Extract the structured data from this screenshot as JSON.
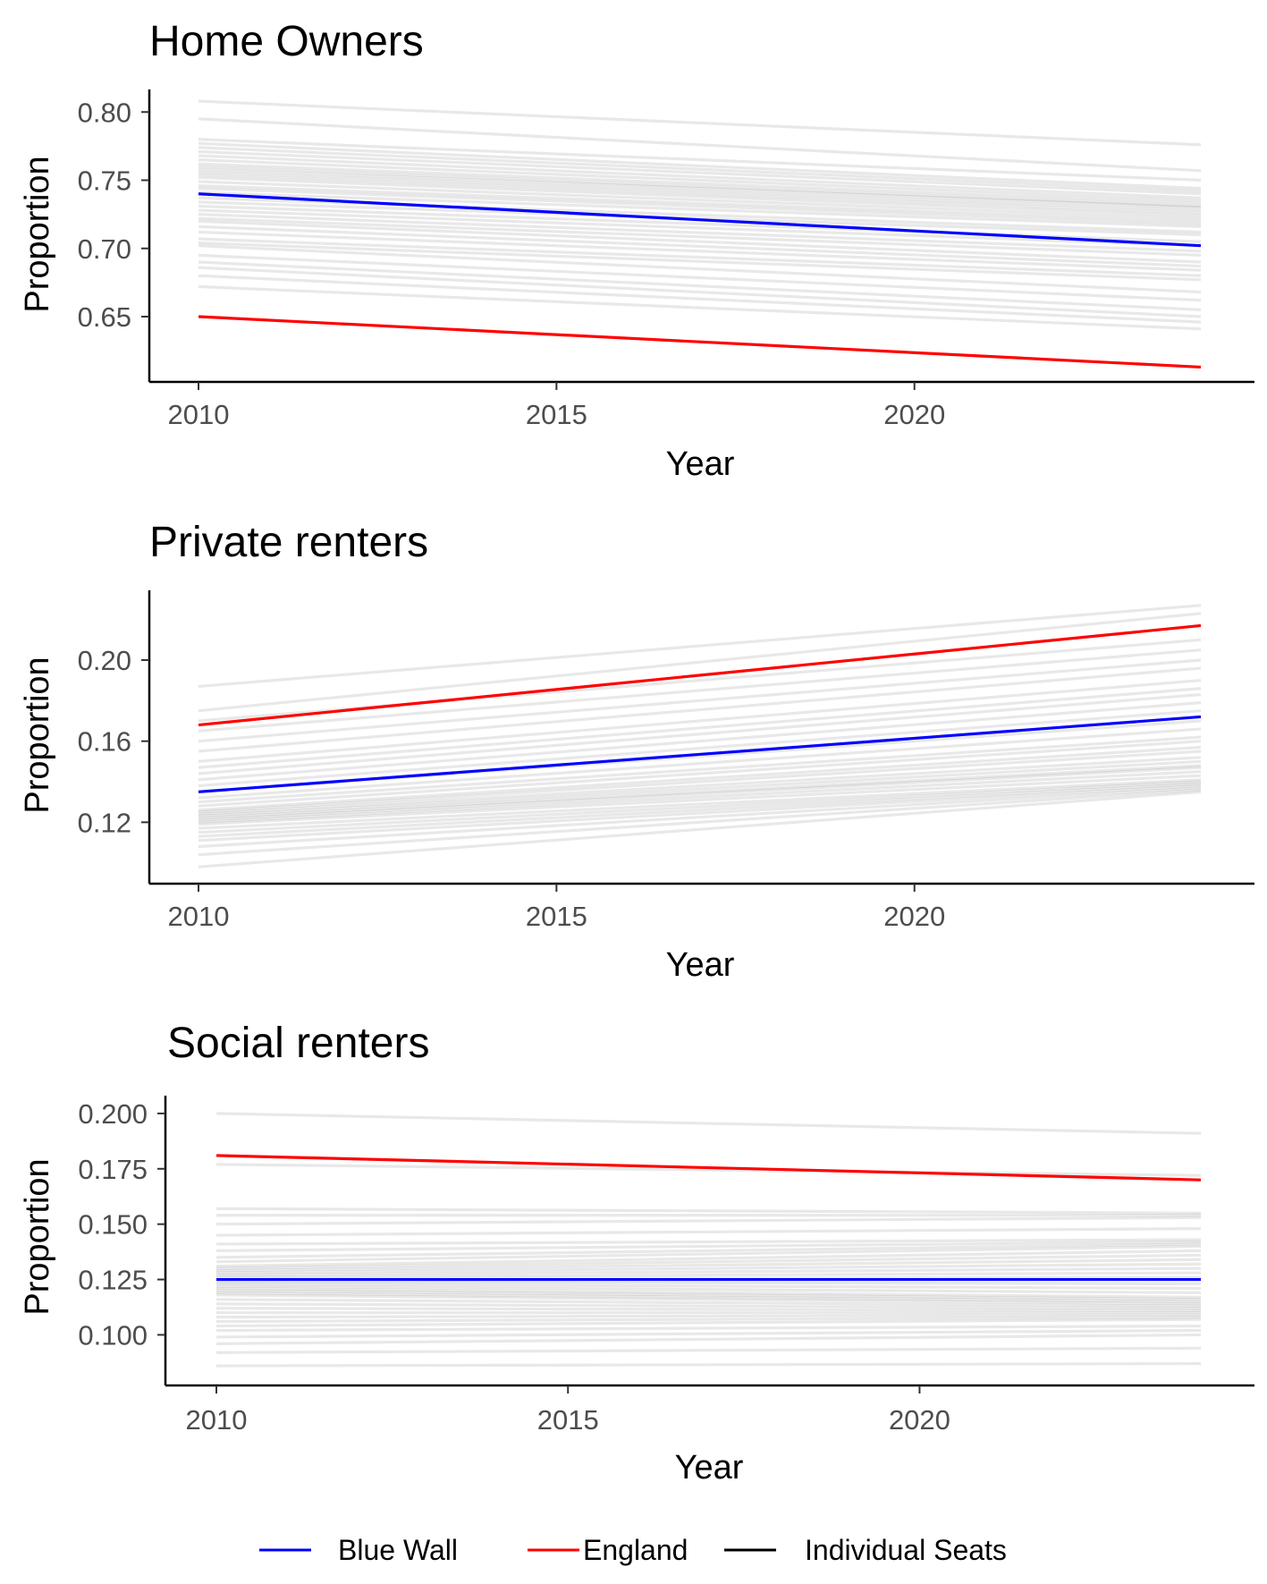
{
  "colors": {
    "blue_wall": "#0000ff",
    "england": "#ff0000",
    "individual_seats": "#000000",
    "individual_seats_alpha": 0.09
  },
  "legend": [
    {
      "label": "Blue Wall",
      "color": "#0000ff"
    },
    {
      "label": "England",
      "color": "#ff0000"
    },
    {
      "label": "Individual Seats",
      "color": "#000000"
    }
  ],
  "chart_data": [
    {
      "type": "line",
      "title": "Home Owners",
      "xlabel": "Year",
      "ylabel": "Proportion",
      "xlim": [
        2010,
        2024
      ],
      "ylim": [
        0.61,
        0.81
      ],
      "x_ticks": [
        "2010",
        "2015",
        "2020"
      ],
      "y_ticks": [
        "0.80",
        "0.75",
        "0.70",
        "0.65"
      ],
      "grid": false,
      "series": [
        {
          "name": "Blue Wall",
          "x": [
            2010,
            2024
          ],
          "values": [
            0.74,
            0.702
          ]
        },
        {
          "name": "England",
          "x": [
            2010,
            2024
          ],
          "values": [
            0.65,
            0.613
          ]
        }
      ],
      "seats": [
        [
          0.808,
          0.776
        ],
        [
          0.795,
          0.757
        ],
        [
          0.78,
          0.75
        ],
        [
          0.777,
          0.744
        ],
        [
          0.774,
          0.742
        ],
        [
          0.771,
          0.74
        ],
        [
          0.768,
          0.737
        ],
        [
          0.765,
          0.735
        ],
        [
          0.762,
          0.733
        ],
        [
          0.76,
          0.731
        ],
        [
          0.758,
          0.73
        ],
        [
          0.756,
          0.728
        ],
        [
          0.754,
          0.726
        ],
        [
          0.752,
          0.724
        ],
        [
          0.749,
          0.722
        ],
        [
          0.746,
          0.72
        ],
        [
          0.744,
          0.718
        ],
        [
          0.741,
          0.716
        ],
        [
          0.737,
          0.712
        ],
        [
          0.734,
          0.71
        ],
        [
          0.731,
          0.705
        ],
        [
          0.728,
          0.702
        ],
        [
          0.725,
          0.698
        ],
        [
          0.722,
          0.695
        ],
        [
          0.72,
          0.69
        ],
        [
          0.716,
          0.687
        ],
        [
          0.712,
          0.684
        ],
        [
          0.707,
          0.68
        ],
        [
          0.704,
          0.677
        ],
        [
          0.702,
          0.668
        ],
        [
          0.695,
          0.662
        ],
        [
          0.69,
          0.655
        ],
        [
          0.686,
          0.65
        ],
        [
          0.68,
          0.646
        ],
        [
          0.672,
          0.641
        ]
      ]
    },
    {
      "type": "line",
      "title": "Private renters",
      "xlabel": "Year",
      "ylabel": "Proportion",
      "xlim": [
        2010,
        2024
      ],
      "ylim": [
        0.095,
        0.23
      ],
      "x_ticks": [
        "2010",
        "2015",
        "2020"
      ],
      "y_ticks": [
        "0.20",
        "0.16",
        "0.12"
      ],
      "grid": false,
      "series": [
        {
          "name": "Blue Wall",
          "x": [
            2010,
            2024
          ],
          "values": [
            0.135,
            0.172
          ]
        },
        {
          "name": "England",
          "x": [
            2010,
            2024
          ],
          "values": [
            0.168,
            0.217
          ]
        }
      ],
      "seats": [
        [
          0.187,
          0.227
        ],
        [
          0.175,
          0.223
        ],
        [
          0.17,
          0.21
        ],
        [
          0.165,
          0.205
        ],
        [
          0.16,
          0.2
        ],
        [
          0.155,
          0.196
        ],
        [
          0.15,
          0.19
        ],
        [
          0.147,
          0.186
        ],
        [
          0.144,
          0.183
        ],
        [
          0.141,
          0.179
        ],
        [
          0.138,
          0.175
        ],
        [
          0.135,
          0.17
        ],
        [
          0.132,
          0.166
        ],
        [
          0.13,
          0.162
        ],
        [
          0.128,
          0.16
        ],
        [
          0.126,
          0.157
        ],
        [
          0.125,
          0.155
        ],
        [
          0.124,
          0.152
        ],
        [
          0.123,
          0.15
        ],
        [
          0.122,
          0.148
        ],
        [
          0.121,
          0.147
        ],
        [
          0.12,
          0.145
        ],
        [
          0.119,
          0.143
        ],
        [
          0.117,
          0.141
        ],
        [
          0.115,
          0.14
        ],
        [
          0.113,
          0.139
        ],
        [
          0.111,
          0.138
        ],
        [
          0.108,
          0.137
        ],
        [
          0.104,
          0.136
        ],
        [
          0.098,
          0.135
        ]
      ]
    },
    {
      "type": "line",
      "title": "Social renters",
      "xlabel": "Year",
      "ylabel": "Proportion",
      "xlim": [
        2010,
        2024
      ],
      "ylim": [
        0.082,
        0.204
      ],
      "x_ticks": [
        "2010",
        "2015",
        "2020"
      ],
      "y_ticks": [
        "0.200",
        "0.175",
        "0.150",
        "0.125",
        "0.100"
      ],
      "grid": false,
      "series": [
        {
          "name": "Blue Wall",
          "x": [
            2010,
            2024
          ],
          "values": [
            0.125,
            0.125
          ]
        },
        {
          "name": "England",
          "x": [
            2010,
            2024
          ],
          "values": [
            0.181,
            0.17
          ]
        }
      ],
      "seats": [
        [
          0.2,
          0.191
        ],
        [
          0.177,
          0.172
        ],
        [
          0.157,
          0.155
        ],
        [
          0.154,
          0.154
        ],
        [
          0.15,
          0.153
        ],
        [
          0.145,
          0.148
        ],
        [
          0.141,
          0.143
        ],
        [
          0.138,
          0.142
        ],
        [
          0.135,
          0.141
        ],
        [
          0.133,
          0.14
        ],
        [
          0.131,
          0.138
        ],
        [
          0.13,
          0.136
        ],
        [
          0.129,
          0.134
        ],
        [
          0.128,
          0.132
        ],
        [
          0.127,
          0.13
        ],
        [
          0.126,
          0.128
        ],
        [
          0.125,
          0.126
        ],
        [
          0.124,
          0.123
        ],
        [
          0.123,
          0.121
        ],
        [
          0.122,
          0.119
        ],
        [
          0.121,
          0.117
        ],
        [
          0.12,
          0.116
        ],
        [
          0.119,
          0.115
        ],
        [
          0.118,
          0.114
        ],
        [
          0.116,
          0.113
        ],
        [
          0.114,
          0.112
        ],
        [
          0.112,
          0.111
        ],
        [
          0.11,
          0.11
        ],
        [
          0.108,
          0.109
        ],
        [
          0.106,
          0.108
        ],
        [
          0.104,
          0.107
        ],
        [
          0.102,
          0.104
        ],
        [
          0.099,
          0.102
        ],
        [
          0.096,
          0.1
        ],
        [
          0.092,
          0.094
        ],
        [
          0.086,
          0.087
        ]
      ]
    }
  ]
}
